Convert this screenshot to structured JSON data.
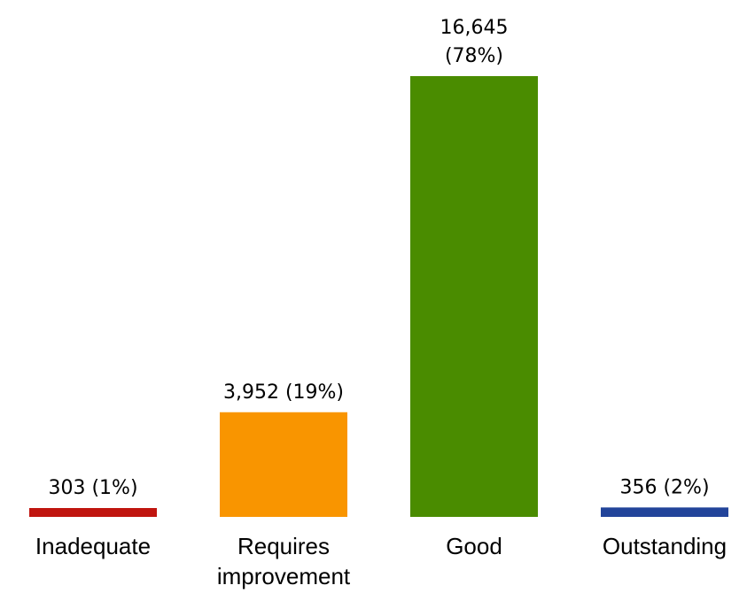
{
  "chart_data": {
    "type": "bar",
    "categories": [
      [
        "Inadequate"
      ],
      [
        "Requires",
        "improvement"
      ],
      [
        "Good"
      ],
      [
        "Outstanding"
      ]
    ],
    "values": [
      303,
      3952,
      16645,
      356
    ],
    "data_labels": [
      [
        "303 (1%)"
      ],
      [
        "3,952 (19%)"
      ],
      [
        "16,645",
        "(78%)"
      ],
      [
        "356 (2%)"
      ]
    ],
    "colors": [
      "#C0150F",
      "#F99500",
      "#4A8C00",
      "#22449A"
    ],
    "title": "",
    "xlabel": "",
    "ylabel": "",
    "ylim": [
      0,
      16645
    ],
    "grid": false,
    "legend": "none"
  }
}
